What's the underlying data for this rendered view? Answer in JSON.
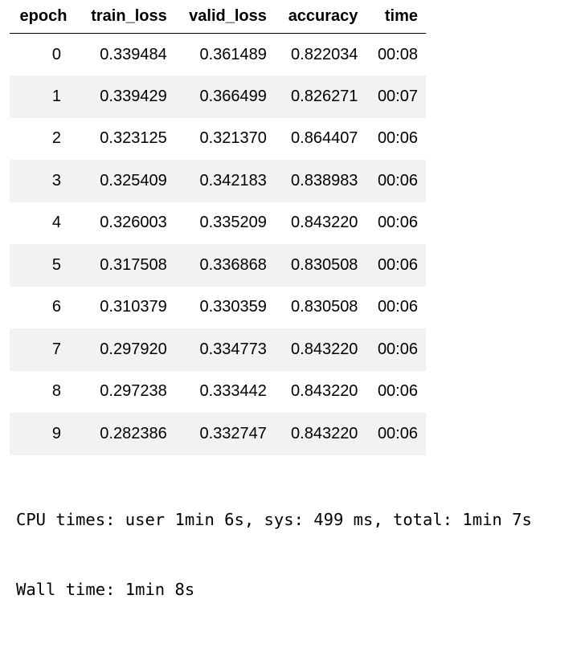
{
  "table": {
    "columns": [
      "epoch",
      "train_loss",
      "valid_loss",
      "accuracy",
      "time"
    ],
    "rows": [
      [
        "0",
        "0.339484",
        "0.361489",
        "0.822034",
        "00:08"
      ],
      [
        "1",
        "0.339429",
        "0.366499",
        "0.826271",
        "00:07"
      ],
      [
        "2",
        "0.323125",
        "0.321370",
        "0.864407",
        "00:06"
      ],
      [
        "3",
        "0.325409",
        "0.342183",
        "0.838983",
        "00:06"
      ],
      [
        "4",
        "0.326003",
        "0.335209",
        "0.843220",
        "00:06"
      ],
      [
        "5",
        "0.317508",
        "0.336868",
        "0.830508",
        "00:06"
      ],
      [
        "6",
        "0.310379",
        "0.330359",
        "0.830508",
        "00:06"
      ],
      [
        "7",
        "0.297920",
        "0.334773",
        "0.843220",
        "00:06"
      ],
      [
        "8",
        "0.297238",
        "0.333442",
        "0.843220",
        "00:06"
      ],
      [
        "9",
        "0.282386",
        "0.332747",
        "0.843220",
        "00:06"
      ]
    ]
  },
  "output": {
    "cpu_times": "CPU times: user 1min 6s, sys: 499 ms, total: 1min 7s",
    "wall_time": "Wall time: 1min 8s"
  },
  "colors": {
    "row_stripe": "#f2f2f2",
    "header_rule": "#000000",
    "background": "#ffffff"
  }
}
